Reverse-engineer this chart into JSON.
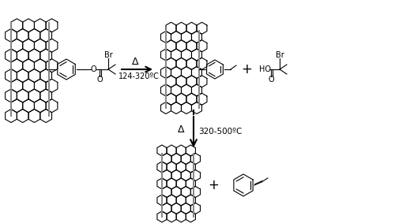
{
  "background_color": "#ffffff",
  "line_color": "#000000",
  "reaction1_label": "Δ",
  "reaction1_temp": "124-320ºC",
  "reaction2_label": "Δ",
  "reaction2_temp": "320-500ºC",
  "plus_sign": "+",
  "figsize": [
    5.0,
    2.83
  ],
  "dpi": 100
}
